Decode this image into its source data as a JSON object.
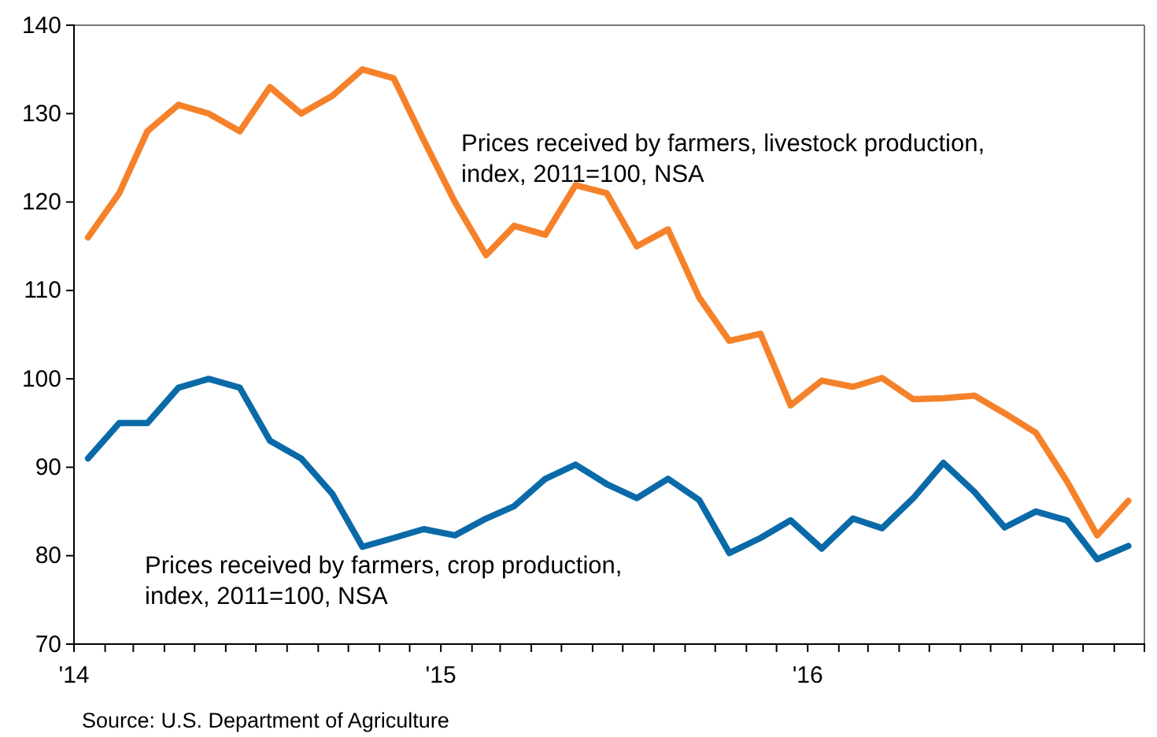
{
  "chart_data": {
    "type": "line",
    "x": [
      "2014-01-15",
      "2014-02-15",
      "2014-03-15",
      "2014-04-15",
      "2014-05-15",
      "2014-06-15",
      "2014-07-15",
      "2014-08-15",
      "2014-09-15",
      "2014-10-15",
      "2014-11-15",
      "2014-12-15",
      "2015-01-15",
      "2015-02-15",
      "2015-03-15",
      "2015-04-15",
      "2015-05-15",
      "2015-06-15",
      "2015-07-15",
      "2015-08-15",
      "2015-09-15",
      "2015-10-15",
      "2015-11-15",
      "2015-12-15",
      "2016-01-15",
      "2016-02-15",
      "2016-03-15",
      "2016-04-15",
      "2016-05-15",
      "2016-06-15",
      "2016-07-15",
      "2016-08-15",
      "2016-09-15",
      "2016-10-15",
      "2016-11-15"
    ],
    "series": [
      {
        "name": "Prices received by farmers, livestock production, index, 2011=100, NSA",
        "color": "#f5822a",
        "values": [
          116,
          121,
          128,
          131,
          130,
          128,
          133,
          130,
          132,
          135,
          134,
          127,
          120,
          114,
          117.3,
          116.3,
          121.9,
          121,
          115,
          116.9,
          109.2,
          104.3,
          105.1,
          97,
          99.8,
          99.1,
          100.1,
          97.7,
          97.8,
          98.1,
          96.1,
          93.9,
          88.4,
          82.3,
          86.2
        ]
      },
      {
        "name": "Prices received by farmers, crop production, index, 2011=100, NSA",
        "color": "#0a6aa8",
        "values": [
          91,
          95,
          95,
          99,
          100,
          99,
          93,
          91,
          87,
          81,
          82,
          83,
          82.3,
          84.2,
          85.6,
          88.7,
          90.3,
          88.1,
          86.5,
          88.7,
          86.3,
          80.3,
          82,
          84,
          80.8,
          84.2,
          83.1,
          86.5,
          90.5,
          87.2,
          83.2,
          85,
          84,
          79.6,
          81.1
        ]
      }
    ],
    "xlim": [
      "2014-01-01",
      "2016-12-01"
    ],
    "xticks": [
      {
        "value": "2014-01-01",
        "label": "'14"
      },
      {
        "value": "2014-02-01",
        "label": null
      },
      {
        "value": "2014-03-01",
        "label": null
      },
      {
        "value": "2014-04-01",
        "label": null
      },
      {
        "value": "2014-05-01",
        "label": null
      },
      {
        "value": "2014-06-01",
        "label": null
      },
      {
        "value": "2014-07-01",
        "label": null
      },
      {
        "value": "2014-08-01",
        "label": null
      },
      {
        "value": "2014-09-01",
        "label": null
      },
      {
        "value": "2014-10-01",
        "label": null
      },
      {
        "value": "2014-11-01",
        "label": null
      },
      {
        "value": "2014-12-01",
        "label": null
      },
      {
        "value": "2015-01-01",
        "label": "'15"
      },
      {
        "value": "2015-02-01",
        "label": null
      },
      {
        "value": "2015-03-01",
        "label": null
      },
      {
        "value": "2015-04-01",
        "label": null
      },
      {
        "value": "2015-05-01",
        "label": null
      },
      {
        "value": "2015-06-01",
        "label": null
      },
      {
        "value": "2015-07-01",
        "label": null
      },
      {
        "value": "2015-08-01",
        "label": null
      },
      {
        "value": "2015-09-01",
        "label": null
      },
      {
        "value": "2015-10-01",
        "label": null
      },
      {
        "value": "2015-11-01",
        "label": null
      },
      {
        "value": "2015-12-01",
        "label": null
      },
      {
        "value": "2016-01-01",
        "label": "'16"
      },
      {
        "value": "2016-02-01",
        "label": null
      },
      {
        "value": "2016-03-01",
        "label": null
      },
      {
        "value": "2016-04-01",
        "label": null
      },
      {
        "value": "2016-05-01",
        "label": null
      },
      {
        "value": "2016-06-01",
        "label": null
      },
      {
        "value": "2016-07-01",
        "label": null
      },
      {
        "value": "2016-08-01",
        "label": null
      },
      {
        "value": "2016-09-01",
        "label": null
      },
      {
        "value": "2016-10-01",
        "label": null
      },
      {
        "value": "2016-11-01",
        "label": null
      },
      {
        "value": "2016-12-01",
        "label": null
      }
    ],
    "ylim": [
      70,
      140
    ],
    "yticks": [
      70,
      80,
      90,
      100,
      110,
      120,
      130,
      140
    ],
    "grid": false,
    "marker": "none",
    "line_style": "solid",
    "annotations": [
      "Source: U.S. Department of Agriculture"
    ]
  }
}
